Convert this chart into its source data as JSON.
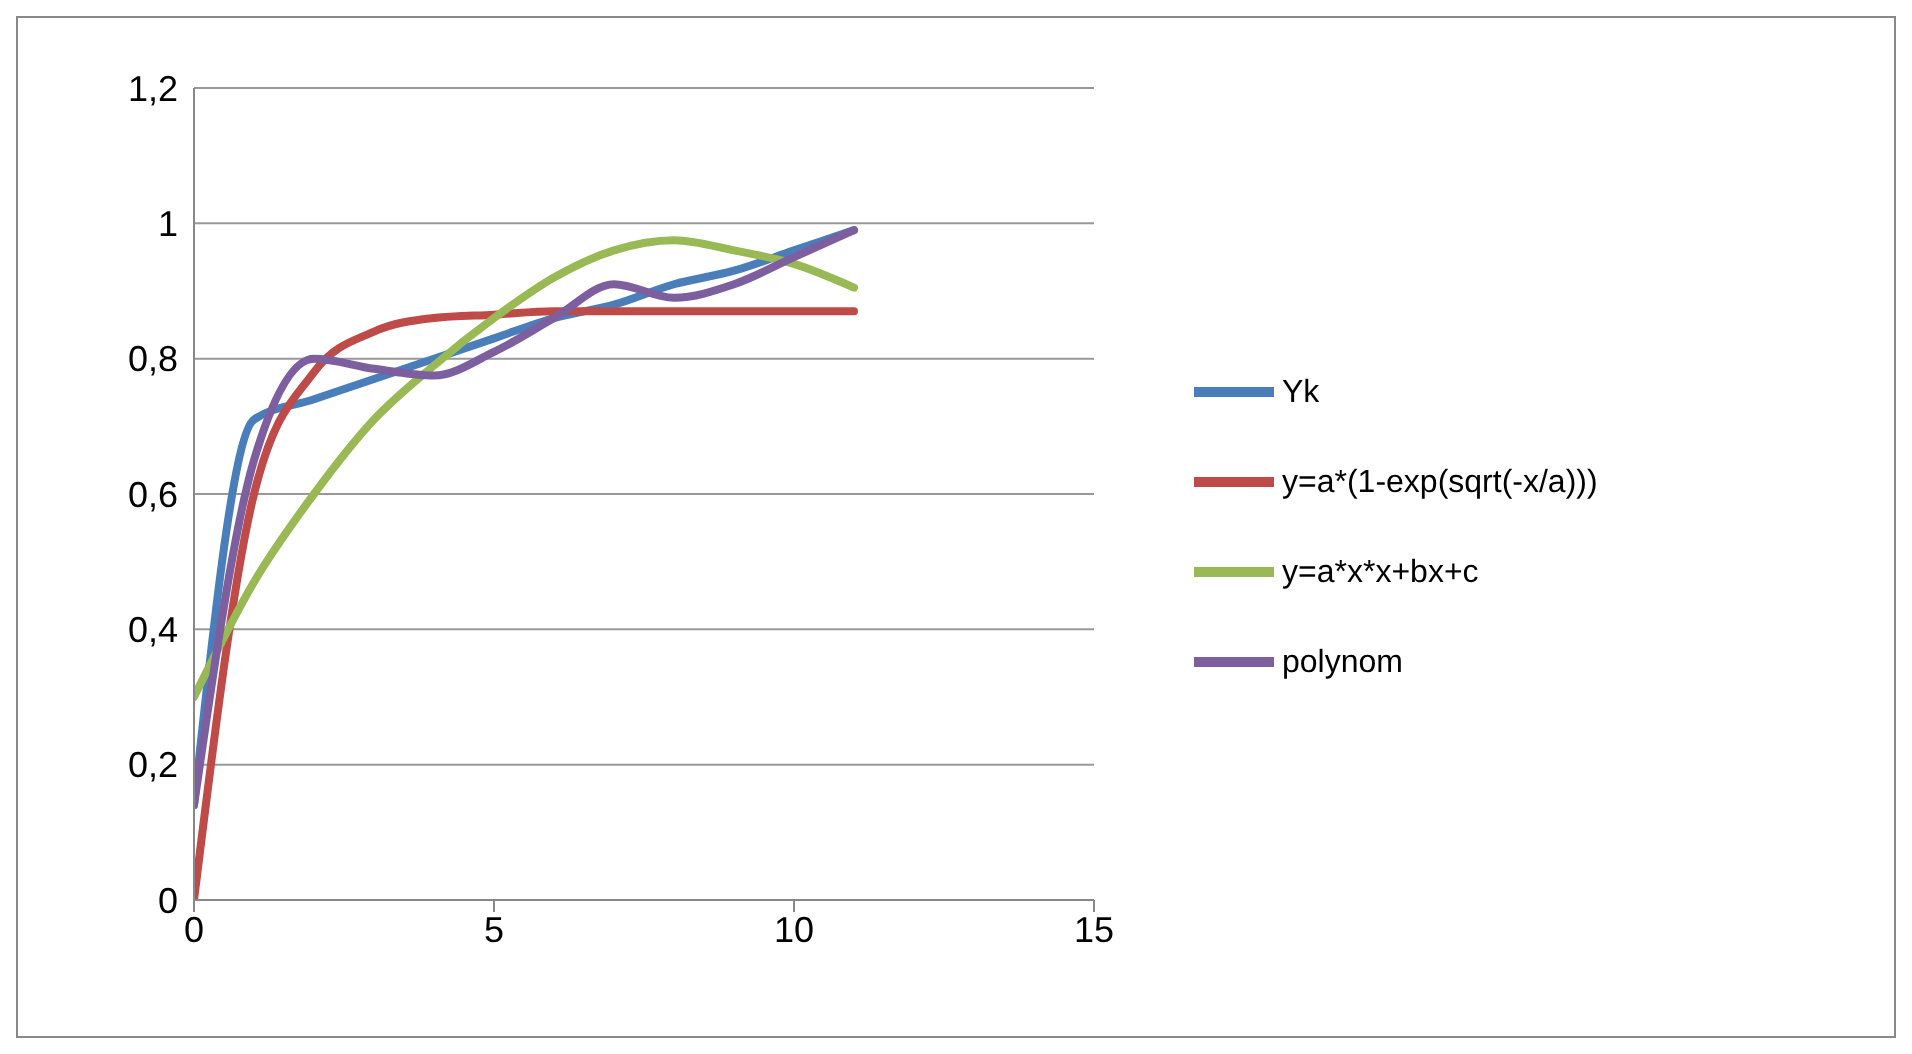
{
  "chart_data": {
    "type": "line",
    "x": [
      0,
      1,
      2,
      3,
      4,
      5,
      6,
      7,
      8,
      9,
      10,
      11
    ],
    "series": [
      {
        "name": "Yk",
        "color": "#4a7ebb",
        "values": [
          0.14,
          0.71,
          0.74,
          0.77,
          0.8,
          0.83,
          0.86,
          0.88,
          0.91,
          0.93,
          0.96,
          0.99
        ]
      },
      {
        "name": "y=a*(1-exp(sqrt(-x/a)))",
        "color": "#be4b48",
        "values": [
          0,
          0.6,
          0.78,
          0.84,
          0.86,
          0.865,
          0.87,
          0.87,
          0.87,
          0.87,
          0.87,
          0.87
        ]
      },
      {
        "name": "y=a*x*x+bx+c",
        "color": "#98b954",
        "values": [
          0.3,
          0.47,
          0.6,
          0.71,
          0.79,
          0.86,
          0.92,
          0.96,
          0.975,
          0.96,
          0.94,
          0.905
        ]
      },
      {
        "name": "polynom",
        "color": "#7d5fa0",
        "values": [
          0.14,
          0.65,
          0.8,
          0.785,
          0.775,
          0.81,
          0.86,
          0.91,
          0.89,
          0.91,
          0.95,
          0.99
        ]
      }
    ],
    "xlim": [
      0,
      15
    ],
    "xticks": [
      0,
      5,
      10,
      15
    ],
    "ylim": [
      0,
      1.2
    ],
    "yticks": [
      0,
      {
        "value": 0.2,
        "label": "0,2"
      },
      {
        "value": 0.4,
        "label": "0,4"
      },
      {
        "value": 0.6,
        "label": "0,6"
      },
      {
        "value": 0.8,
        "label": "0,8"
      },
      1,
      {
        "value": 1.2,
        "label": "1,2"
      }
    ],
    "grid": "y",
    "legend": "right",
    "marker": "none",
    "line_style": "solid"
  }
}
